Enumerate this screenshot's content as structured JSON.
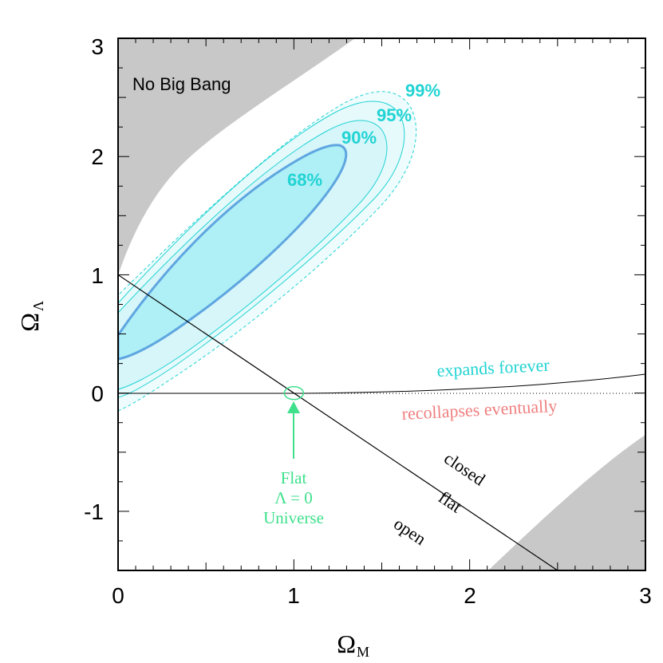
{
  "chart_data": {
    "type": "contour",
    "xlabel": "Ω",
    "xlabel_sub": "M",
    "ylabel": "Ω",
    "ylabel_sub": "Λ",
    "xlim": [
      0,
      3
    ],
    "ylim": [
      -1.5,
      3
    ],
    "x_ticks": [
      "0",
      "1",
      "2",
      "3"
    ],
    "y_ticks": [
      "-1",
      "0",
      "1",
      "2",
      "3"
    ],
    "confidence_labels": [
      "68%",
      "90%",
      "95%",
      "99%"
    ],
    "region_no_big_bang": "No Big Bang",
    "curve_expands": "expands forever",
    "curve_recollapses": "recollapses eventually",
    "flat_line_labels": [
      "closed",
      "flat",
      "open"
    ],
    "flat_universe_label": [
      "Flat",
      "Λ = 0",
      "Universe"
    ],
    "flat_line": {
      "x": [
        0,
        2.5
      ],
      "y": [
        1,
        -1.5
      ]
    },
    "flat_universe_point": {
      "x": 1,
      "y": 0
    },
    "colors": {
      "gray_region": "#c8c8c8",
      "contour": "#22d3d3",
      "fill_68": "#aef0f6",
      "fill_outer": "#e6fafc",
      "green": "#3ee08c",
      "salmon": "#f08080"
    }
  }
}
